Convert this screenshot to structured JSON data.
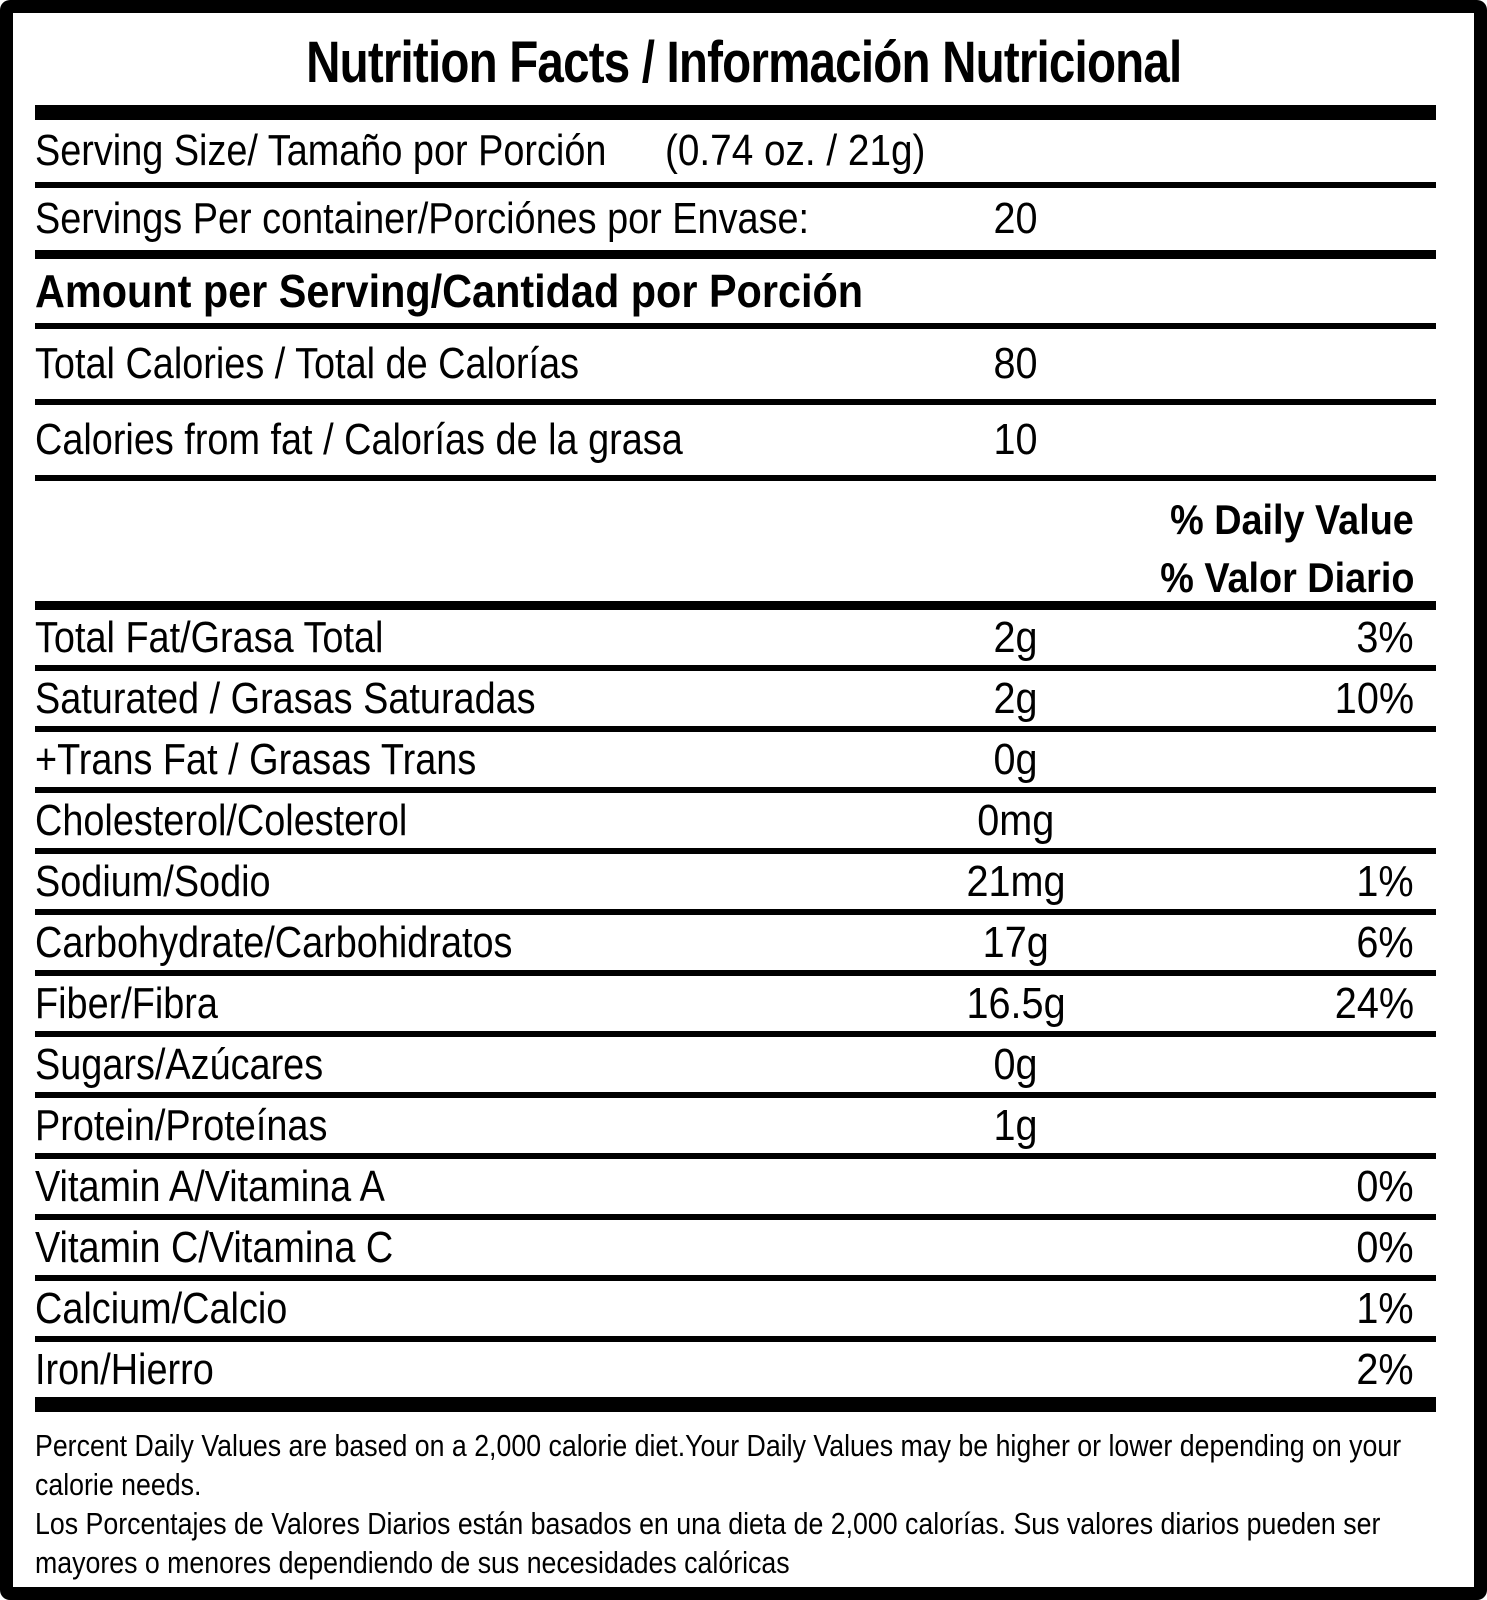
{
  "title": "Nutrition Facts / Información Nutricional",
  "serving": {
    "label": "Serving Size/ Tamaño por Porción",
    "value": "(0.74 oz. / 21g)"
  },
  "servings_per_container": {
    "label": "Servings Per container/Porciónes por Envase:",
    "value": "20"
  },
  "amount_header": "Amount per Serving/Cantidad por Porción",
  "calorie_rows": [
    {
      "label": "Total Calories / Total de Calorías",
      "amount": "80"
    },
    {
      "label": "Calories from fat / Calorías de la grasa",
      "amount": "10"
    }
  ],
  "daily_value_header": {
    "line1": "% Daily Value",
    "line2": "% Valor Diario"
  },
  "nutrient_rows": [
    {
      "label": "Total Fat/Grasa Total",
      "amount": "2g",
      "percent": "3%"
    },
    {
      "label": "Saturated / Grasas Saturadas",
      "amount": "2g",
      "percent": "10%"
    },
    {
      "label": "+Trans Fat / Grasas Trans",
      "amount": "0g",
      "percent": ""
    },
    {
      "label": "Cholesterol/Colesterol",
      "amount": "0mg",
      "percent": ""
    },
    {
      "label": "Sodium/Sodio",
      "amount": "21mg",
      "percent": "1%"
    },
    {
      "label": "Carbohydrate/Carbohidratos",
      "amount": "17g",
      "percent": "6%"
    },
    {
      "label": "Fiber/Fibra",
      "amount": "16.5g",
      "percent": "24%"
    },
    {
      "label": "Sugars/Azúcares",
      "amount": "0g",
      "percent": ""
    },
    {
      "label": "Protein/Proteínas",
      "amount": "1g",
      "percent": ""
    },
    {
      "label": "Vitamin A/Vitamina A",
      "amount": "",
      "percent": "0%"
    },
    {
      "label": "Vitamin C/Vitamina C",
      "amount": "",
      "percent": "0%"
    },
    {
      "label": "Calcium/Calcio",
      "amount": "",
      "percent": "1%"
    },
    {
      "label": "Iron/Hierro",
      "amount": "",
      "percent": "2%"
    }
  ],
  "footnotes": {
    "english": "Percent Daily Values are based on a 2,000 calorie diet.Your Daily Values may be higher or lower depending on your calorie needs.",
    "spanish": "Los Porcentajes de Valores Diarios están basados en una dieta de 2,000 calorías. Sus valores diarios pueden ser mayores o menores dependiendo de sus necesidades calóricas"
  },
  "colors": {
    "ink": "#000000",
    "background": "#ffffff"
  }
}
